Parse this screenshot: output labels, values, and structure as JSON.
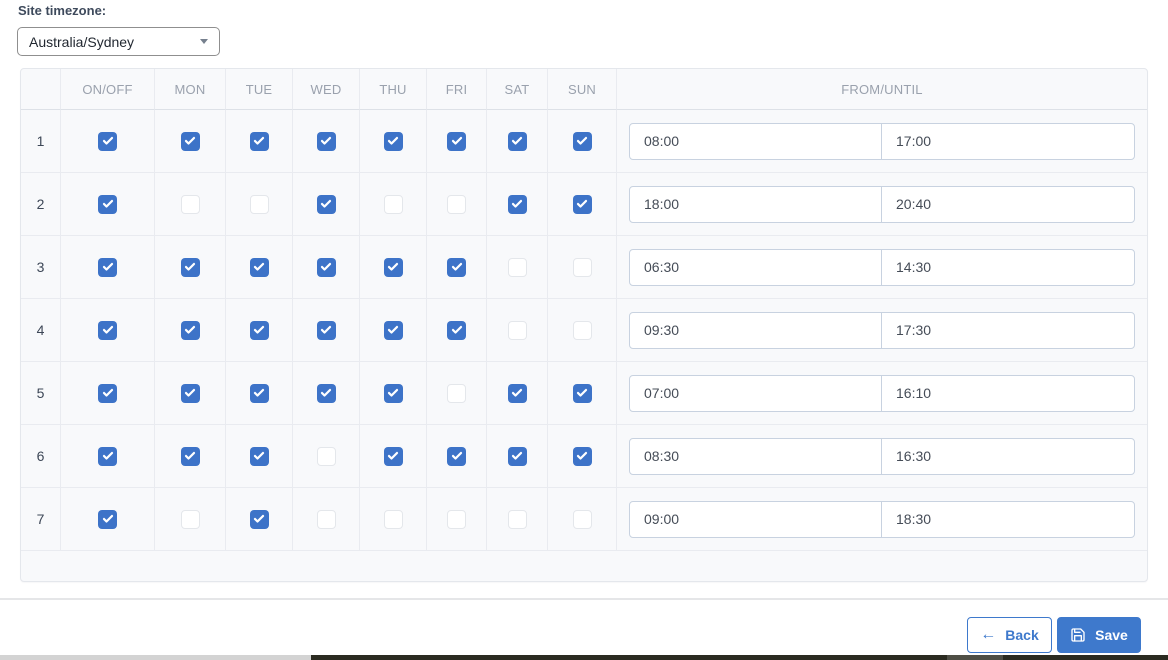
{
  "timezone": {
    "label": "Site timezone:",
    "selected": "Australia/Sydney"
  },
  "schedule_table": {
    "columns": [
      "",
      "ON/OFF",
      "MON",
      "TUE",
      "WED",
      "THU",
      "FRI",
      "SAT",
      "SUN",
      "FROM/UNTIL"
    ],
    "rows": [
      {
        "num": "1",
        "checks": [
          true,
          true,
          true,
          true,
          true,
          true,
          true,
          true
        ],
        "from": "08:00",
        "until": "17:00"
      },
      {
        "num": "2",
        "checks": [
          true,
          false,
          false,
          true,
          false,
          false,
          true,
          true
        ],
        "from": "18:00",
        "until": "20:40"
      },
      {
        "num": "3",
        "checks": [
          true,
          true,
          true,
          true,
          true,
          true,
          false,
          false
        ],
        "from": "06:30",
        "until": "14:30"
      },
      {
        "num": "4",
        "checks": [
          true,
          true,
          true,
          true,
          true,
          true,
          false,
          false
        ],
        "from": "09:30",
        "until": "17:30"
      },
      {
        "num": "5",
        "checks": [
          true,
          true,
          true,
          true,
          true,
          false,
          true,
          true
        ],
        "from": "07:00",
        "until": "16:10"
      },
      {
        "num": "6",
        "checks": [
          true,
          true,
          true,
          false,
          true,
          true,
          true,
          true
        ],
        "from": "08:30",
        "until": "16:30"
      },
      {
        "num": "7",
        "checks": [
          true,
          false,
          true,
          false,
          false,
          false,
          false,
          false
        ],
        "from": "09:00",
        "until": "18:30"
      }
    ]
  },
  "footer": {
    "back_label": "Back",
    "save_label": "Save",
    "back_arrow_glyph": "←"
  },
  "icons": {
    "dropdown_caret": "caret-down-icon",
    "back_arrow": "arrow-left-icon",
    "save": "floppy-disk-icon",
    "checkbox_check": "check-icon"
  },
  "colors": {
    "checkbox_checked": "#3d73c8",
    "button_primary": "#3e79cc",
    "panel_background": "#f8f9fb",
    "grid_line": "#e9ebf0",
    "header_text": "#9aa1ad",
    "input_border": "#c8d2e0"
  }
}
